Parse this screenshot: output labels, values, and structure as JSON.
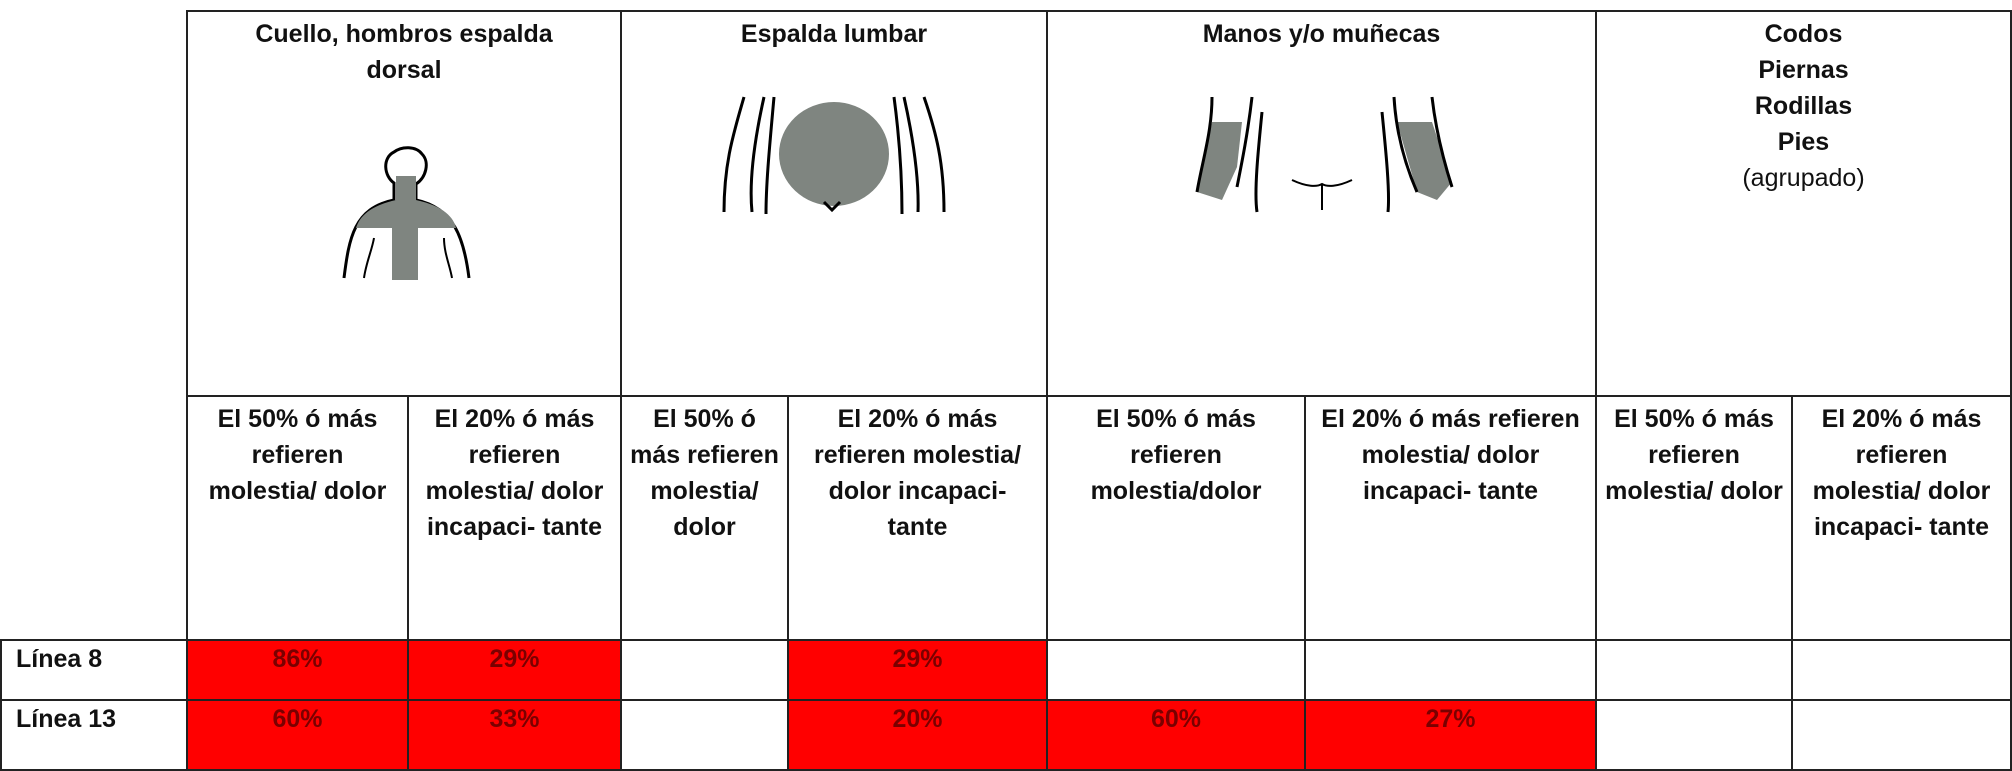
{
  "table": {
    "groups": [
      {
        "title_lines": [
          "Cuello, hombros espalda dorsal"
        ]
      },
      {
        "title_lines": [
          "Espalda lumbar"
        ]
      },
      {
        "title_lines": [
          "Manos y/o muñecas"
        ]
      },
      {
        "title_lines": [
          "Codos",
          "Piernas",
          "Rodillas",
          "Pies"
        ],
        "note": "(agrupado)"
      }
    ],
    "subheaders": [
      "El 50% ó más refieren molestia/ dolor",
      "El 20% ó más refieren molestia/ dolor incapaci- tante",
      "El 50% ó más refieren molestia/ dolor",
      "El 20% ó más refieren molestia/ dolor incapaci- tante",
      "El 50% ó más refieren molestia/dolor",
      "El 20% ó más refieren molestia/ dolor incapaci- tante",
      "El 50% ó más refieren molestia/ dolor",
      "El 20% ó más refieren molestia/ dolor incapaci- tante"
    ],
    "rows": [
      {
        "label": "Línea 8",
        "cells": [
          "86%",
          "29%",
          null,
          "29%",
          null,
          null,
          null,
          null
        ]
      },
      {
        "label": "Línea 13",
        "cells": [
          "60%",
          "33%",
          null,
          "20%",
          "60%",
          "27%",
          null,
          null
        ]
      }
    ],
    "highlight_color": "#ff0000"
  }
}
